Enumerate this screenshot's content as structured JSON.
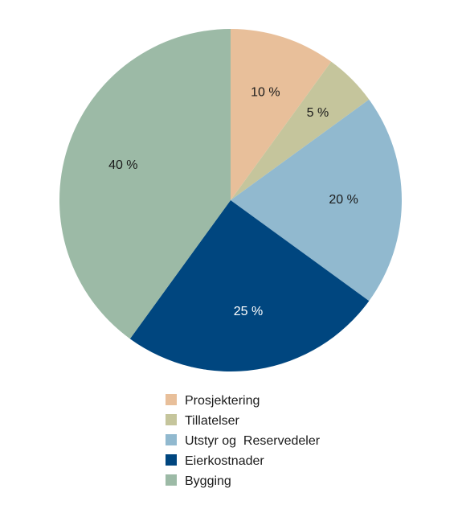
{
  "chart_data": {
    "type": "pie",
    "title": "",
    "start": "top",
    "direction": "clockwise",
    "legend_position": "bottom",
    "slices": [
      {
        "name": "Prosjektering",
        "value": 10,
        "label": "10 %",
        "color": "#e8bf9a",
        "label_color": "#1a1a1a"
      },
      {
        "name": "Tillatelser",
        "value": 5,
        "label": "5 %",
        "color": "#c5c59c",
        "label_color": "#1a1a1a"
      },
      {
        "name": "Utstyr og  Reservedeler",
        "value": 20,
        "label": "20 %",
        "color": "#91b9cf",
        "label_color": "#1a1a1a"
      },
      {
        "name": "Eierkostnader",
        "value": 25,
        "label": "25 %",
        "color": "#00467f",
        "label_color": "#ffffff"
      },
      {
        "name": "Bygging",
        "value": 40,
        "label": "40 %",
        "color": "#9cbaa6",
        "label_color": "#1a1a1a"
      }
    ]
  }
}
